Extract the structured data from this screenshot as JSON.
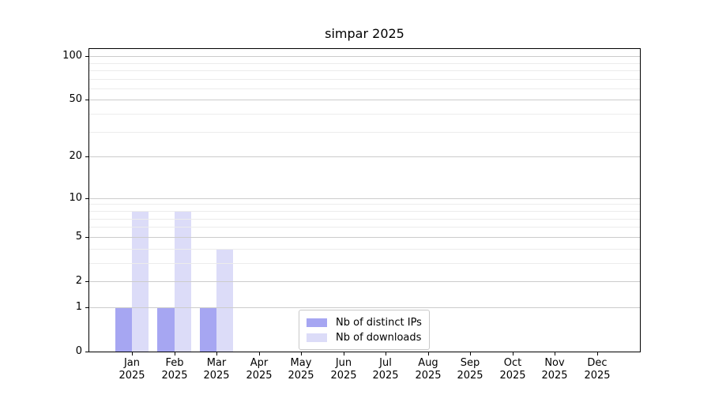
{
  "chart_data": {
    "type": "bar",
    "title": "simpar 2025",
    "categories": [
      "Jan",
      "Feb",
      "Mar",
      "Apr",
      "May",
      "Jun",
      "Jul",
      "Aug",
      "Sep",
      "Oct",
      "Nov",
      "Dec"
    ],
    "category_year": "2025",
    "series": [
      {
        "name": "Nb of distinct IPs",
        "color": "#a6a6f2",
        "values": [
          1,
          1,
          1,
          0,
          0,
          0,
          0,
          0,
          0,
          0,
          0,
          0
        ]
      },
      {
        "name": "Nb of downloads",
        "color": "#dcdcf8",
        "values": [
          8,
          8,
          4,
          0,
          0,
          0,
          0,
          0,
          0,
          0,
          0,
          0
        ]
      }
    ],
    "xlabel": "",
    "ylabel": "",
    "yscale": "log1p",
    "ylim": [
      0,
      112
    ],
    "yticks": [
      0,
      1,
      2,
      5,
      10,
      20,
      50,
      100
    ],
    "minor_gridlines": [
      3,
      4,
      6,
      7,
      8,
      9,
      30,
      40,
      60,
      70,
      80,
      90
    ],
    "grid": "horizontal",
    "legend_position": "lower-center-inside",
    "colors": {
      "major_grid": "#cccccc",
      "minor_grid": "#ececec",
      "spine": "#000000",
      "text": "#000000",
      "background": "#ffffff"
    }
  }
}
